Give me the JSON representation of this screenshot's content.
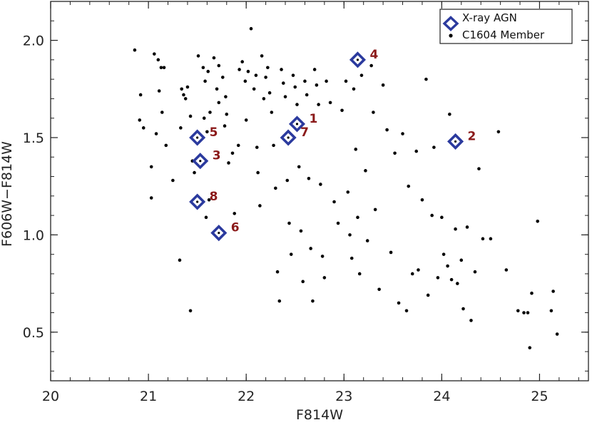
{
  "chart_data": {
    "type": "scatter",
    "xlabel": "F814W",
    "ylabel": "F606W−F814W",
    "xlim": [
      20.0,
      25.5
    ],
    "ylim": [
      0.25,
      2.2
    ],
    "x_ticks": [
      20,
      21,
      22,
      23,
      24,
      25
    ],
    "y_ticks": [
      0.5,
      1.0,
      1.5,
      2.0
    ],
    "x_tick_labels": [
      "20",
      "21",
      "22",
      "23",
      "24",
      "25"
    ],
    "y_tick_labels": [
      "0.5",
      "1.0",
      "1.5",
      "2.0"
    ],
    "grid": false,
    "legend_position": "top-right",
    "legend": [
      {
        "label": "X-ray AGN",
        "marker": "diamond",
        "color": "#2b3a9e"
      },
      {
        "label": "C1604 Member",
        "marker": "dot",
        "color": "#000000"
      }
    ],
    "agn": [
      {
        "label": "1",
        "x": 22.52,
        "y": 1.57
      },
      {
        "label": "2",
        "x": 24.14,
        "y": 1.48
      },
      {
        "label": "3",
        "x": 21.53,
        "y": 1.38
      },
      {
        "label": "4",
        "x": 23.14,
        "y": 1.9
      },
      {
        "label": "5",
        "x": 21.5,
        "y": 1.5
      },
      {
        "label": "6",
        "x": 21.72,
        "y": 1.01
      },
      {
        "label": "7",
        "x": 22.43,
        "y": 1.5
      },
      {
        "label": "8",
        "x": 21.5,
        "y": 1.17
      }
    ],
    "members": [
      [
        20.86,
        1.95
      ],
      [
        20.92,
        1.72
      ],
      [
        20.91,
        1.59
      ],
      [
        20.95,
        1.55
      ],
      [
        21.03,
        1.35
      ],
      [
        21.03,
        1.19
      ],
      [
        21.06,
        1.93
      ],
      [
        21.08,
        1.52
      ],
      [
        21.1,
        1.9
      ],
      [
        21.13,
        1.86
      ],
      [
        21.11,
        1.74
      ],
      [
        21.16,
        1.86
      ],
      [
        21.18,
        1.46
      ],
      [
        21.14,
        1.63
      ],
      [
        21.25,
        1.28
      ],
      [
        21.32,
        0.87
      ],
      [
        21.34,
        1.75
      ],
      [
        21.36,
        1.72
      ],
      [
        21.33,
        1.55
      ],
      [
        21.38,
        1.7
      ],
      [
        21.4,
        1.76
      ],
      [
        21.43,
        1.61
      ],
      [
        21.43,
        0.61
      ],
      [
        21.45,
        1.38
      ],
      [
        21.47,
        1.32
      ],
      [
        21.51,
        1.92
      ],
      [
        21.56,
        1.86
      ],
      [
        21.58,
        1.79
      ],
      [
        21.61,
        1.84
      ],
      [
        21.63,
        1.63
      ],
      [
        21.6,
        1.53
      ],
      [
        21.57,
        1.6
      ],
      [
        21.62,
        1.18
      ],
      [
        21.59,
        1.09
      ],
      [
        21.67,
        1.91
      ],
      [
        21.7,
        1.75
      ],
      [
        21.72,
        1.87
      ],
      [
        21.76,
        1.81
      ],
      [
        21.72,
        1.68
      ],
      [
        21.78,
        1.56
      ],
      [
        21.79,
        1.71
      ],
      [
        21.8,
        1.62
      ],
      [
        21.82,
        1.37
      ],
      [
        21.86,
        1.42
      ],
      [
        21.88,
        1.11
      ],
      [
        21.92,
        1.46
      ],
      [
        21.93,
        1.85
      ],
      [
        21.96,
        1.89
      ],
      [
        21.99,
        1.79
      ],
      [
        22.0,
        1.59
      ],
      [
        22.02,
        1.84
      ],
      [
        22.05,
        2.06
      ],
      [
        22.08,
        1.75
      ],
      [
        22.1,
        1.82
      ],
      [
        22.11,
        1.45
      ],
      [
        22.12,
        1.32
      ],
      [
        22.14,
        1.15
      ],
      [
        22.16,
        1.92
      ],
      [
        22.18,
        1.7
      ],
      [
        22.2,
        1.81
      ],
      [
        22.22,
        1.86
      ],
      [
        22.24,
        1.73
      ],
      [
        22.26,
        1.63
      ],
      [
        22.28,
        1.46
      ],
      [
        22.3,
        1.24
      ],
      [
        22.32,
        0.81
      ],
      [
        22.34,
        0.66
      ],
      [
        22.36,
        1.85
      ],
      [
        22.38,
        1.78
      ],
      [
        22.4,
        1.71
      ],
      [
        22.42,
        1.28
      ],
      [
        22.44,
        1.06
      ],
      [
        22.46,
        0.9
      ],
      [
        22.48,
        1.82
      ],
      [
        22.5,
        1.76
      ],
      [
        22.52,
        1.67
      ],
      [
        22.54,
        1.35
      ],
      [
        22.56,
        1.02
      ],
      [
        22.58,
        0.76
      ],
      [
        22.6,
        1.79
      ],
      [
        22.62,
        1.72
      ],
      [
        22.64,
        1.29
      ],
      [
        22.66,
        0.93
      ],
      [
        22.68,
        0.66
      ],
      [
        22.7,
        1.85
      ],
      [
        22.72,
        1.77
      ],
      [
        22.74,
        1.67
      ],
      [
        22.76,
        1.26
      ],
      [
        22.78,
        0.89
      ],
      [
        22.8,
        0.78
      ],
      [
        22.82,
        1.79
      ],
      [
        22.86,
        1.68
      ],
      [
        22.9,
        1.17
      ],
      [
        22.94,
        1.06
      ],
      [
        22.98,
        1.64
      ],
      [
        23.02,
        1.79
      ],
      [
        23.04,
        1.22
      ],
      [
        23.06,
        1.0
      ],
      [
        23.08,
        0.88
      ],
      [
        23.1,
        1.75
      ],
      [
        23.12,
        1.44
      ],
      [
        23.14,
        1.09
      ],
      [
        23.16,
        0.8
      ],
      [
        23.18,
        1.82
      ],
      [
        23.22,
        1.33
      ],
      [
        23.24,
        0.97
      ],
      [
        23.28,
        1.87
      ],
      [
        23.3,
        1.63
      ],
      [
        23.32,
        1.13
      ],
      [
        23.36,
        0.72
      ],
      [
        23.4,
        1.77
      ],
      [
        23.44,
        1.54
      ],
      [
        23.48,
        0.91
      ],
      [
        23.52,
        1.42
      ],
      [
        23.56,
        0.65
      ],
      [
        23.6,
        1.52
      ],
      [
        23.64,
        0.61
      ],
      [
        23.66,
        1.25
      ],
      [
        23.7,
        0.8
      ],
      [
        23.74,
        1.43
      ],
      [
        23.76,
        0.82
      ],
      [
        23.8,
        1.18
      ],
      [
        23.84,
        1.8
      ],
      [
        23.86,
        0.69
      ],
      [
        23.9,
        1.1
      ],
      [
        23.92,
        1.45
      ],
      [
        23.96,
        0.78
      ],
      [
        24.0,
        1.09
      ],
      [
        24.02,
        0.9
      ],
      [
        24.06,
        0.84
      ],
      [
        24.08,
        1.62
      ],
      [
        24.1,
        0.77
      ],
      [
        24.14,
        1.03
      ],
      [
        24.16,
        0.75
      ],
      [
        24.2,
        0.87
      ],
      [
        24.22,
        0.62
      ],
      [
        24.26,
        1.04
      ],
      [
        24.3,
        0.56
      ],
      [
        24.34,
        0.81
      ],
      [
        24.38,
        1.34
      ],
      [
        24.42,
        0.98
      ],
      [
        24.5,
        0.98
      ],
      [
        24.58,
        1.53
      ],
      [
        24.66,
        0.82
      ],
      [
        24.78,
        0.61
      ],
      [
        24.84,
        0.6
      ],
      [
        24.88,
        0.6
      ],
      [
        24.9,
        0.42
      ],
      [
        24.92,
        0.7
      ],
      [
        24.98,
        1.07
      ],
      [
        25.12,
        0.61
      ],
      [
        25.14,
        0.71
      ],
      [
        25.18,
        0.49
      ]
    ]
  }
}
